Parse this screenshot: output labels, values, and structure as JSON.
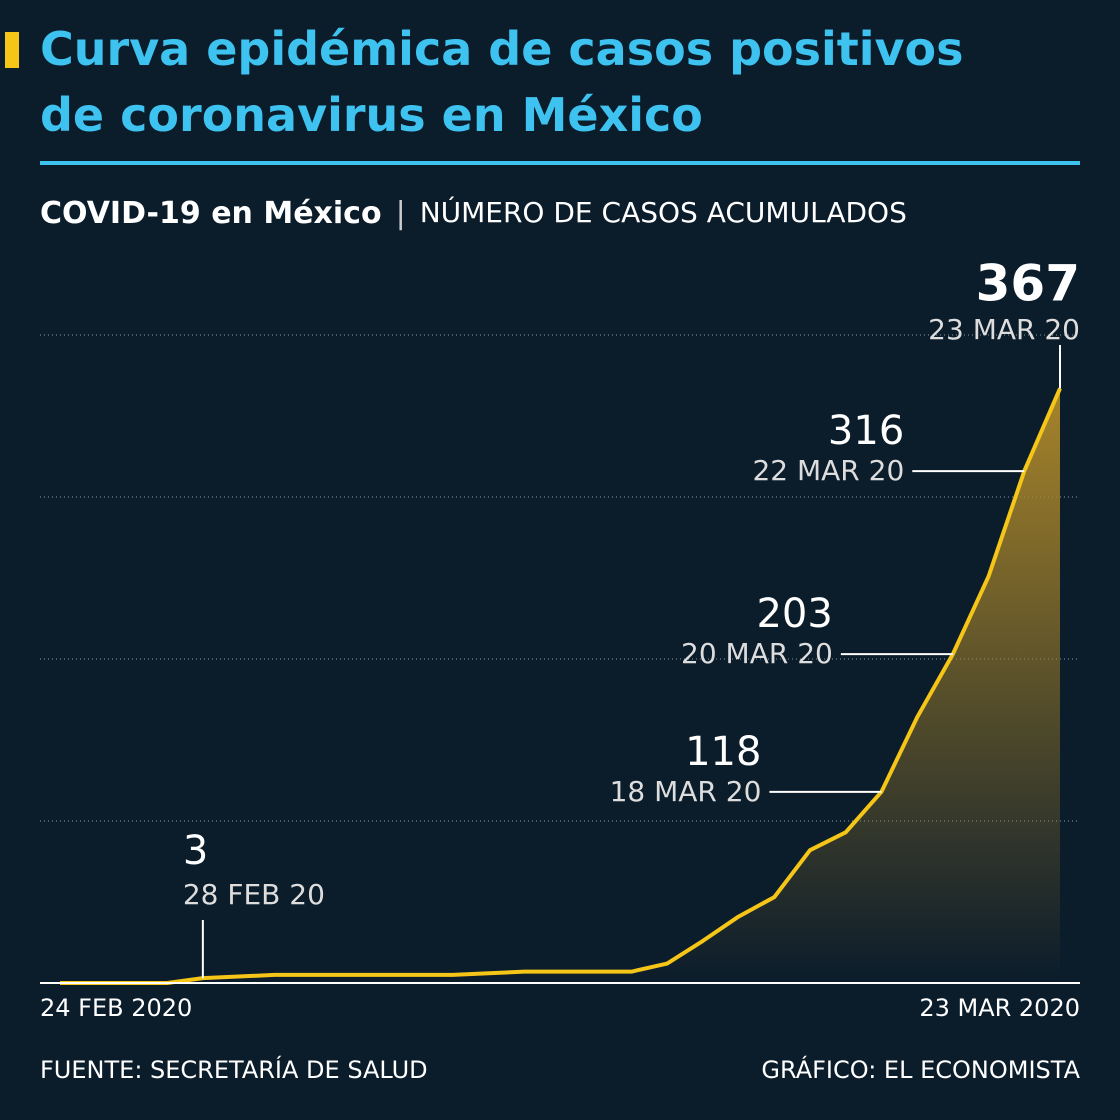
{
  "chart_data": {
    "type": "area-line",
    "title": "Curva epidémica de casos positivos de coronavirus en México",
    "subtitle_bold": "COVID-19 en México",
    "subtitle": "NÚMERO DE CASOS ACUMULADOS",
    "source": "FUENTE: SECRETARÍA DE SALUD",
    "credit": "GRÁFICO: EL ECONOMISTA",
    "x": [
      "2020-02-24",
      "2020-02-25",
      "2020-02-26",
      "2020-02-27",
      "2020-02-28",
      "2020-02-29",
      "2020-03-01",
      "2020-03-02",
      "2020-03-03",
      "2020-03-04",
      "2020-03-05",
      "2020-03-06",
      "2020-03-07",
      "2020-03-08",
      "2020-03-09",
      "2020-03-10",
      "2020-03-11",
      "2020-03-12",
      "2020-03-13",
      "2020-03-14",
      "2020-03-15",
      "2020-03-16",
      "2020-03-17",
      "2020-03-18",
      "2020-03-19",
      "2020-03-20",
      "2020-03-21",
      "2020-03-22",
      "2020-03-23"
    ],
    "values": [
      0,
      0,
      0,
      0,
      3,
      4,
      5,
      5,
      5,
      5,
      5,
      5,
      6,
      7,
      7,
      7,
      7,
      12,
      26,
      41,
      53,
      82,
      93,
      118,
      164,
      203,
      251,
      316,
      367
    ],
    "point_labels": [
      null,
      null,
      null,
      null,
      "28 FEB 20",
      null,
      null,
      null,
      null,
      null,
      null,
      null,
      null,
      null,
      null,
      null,
      null,
      null,
      null,
      null,
      null,
      null,
      null,
      "18 MAR 20",
      null,
      "20 MAR 20",
      null,
      "22 MAR 20",
      "23 MAR 20"
    ],
    "color": "#f5c518",
    "xlim": [
      "2020-02-24",
      "2020-03-23"
    ],
    "xticks": [
      {
        "value": "2020-02-24",
        "label": "24 FEB 2020"
      },
      {
        "value": "2020-03-23",
        "label": "23 MAR 2020"
      }
    ],
    "ylim": [
      0,
      400
    ],
    "yticks": [
      100,
      200,
      300,
      400
    ],
    "grid": true
  }
}
